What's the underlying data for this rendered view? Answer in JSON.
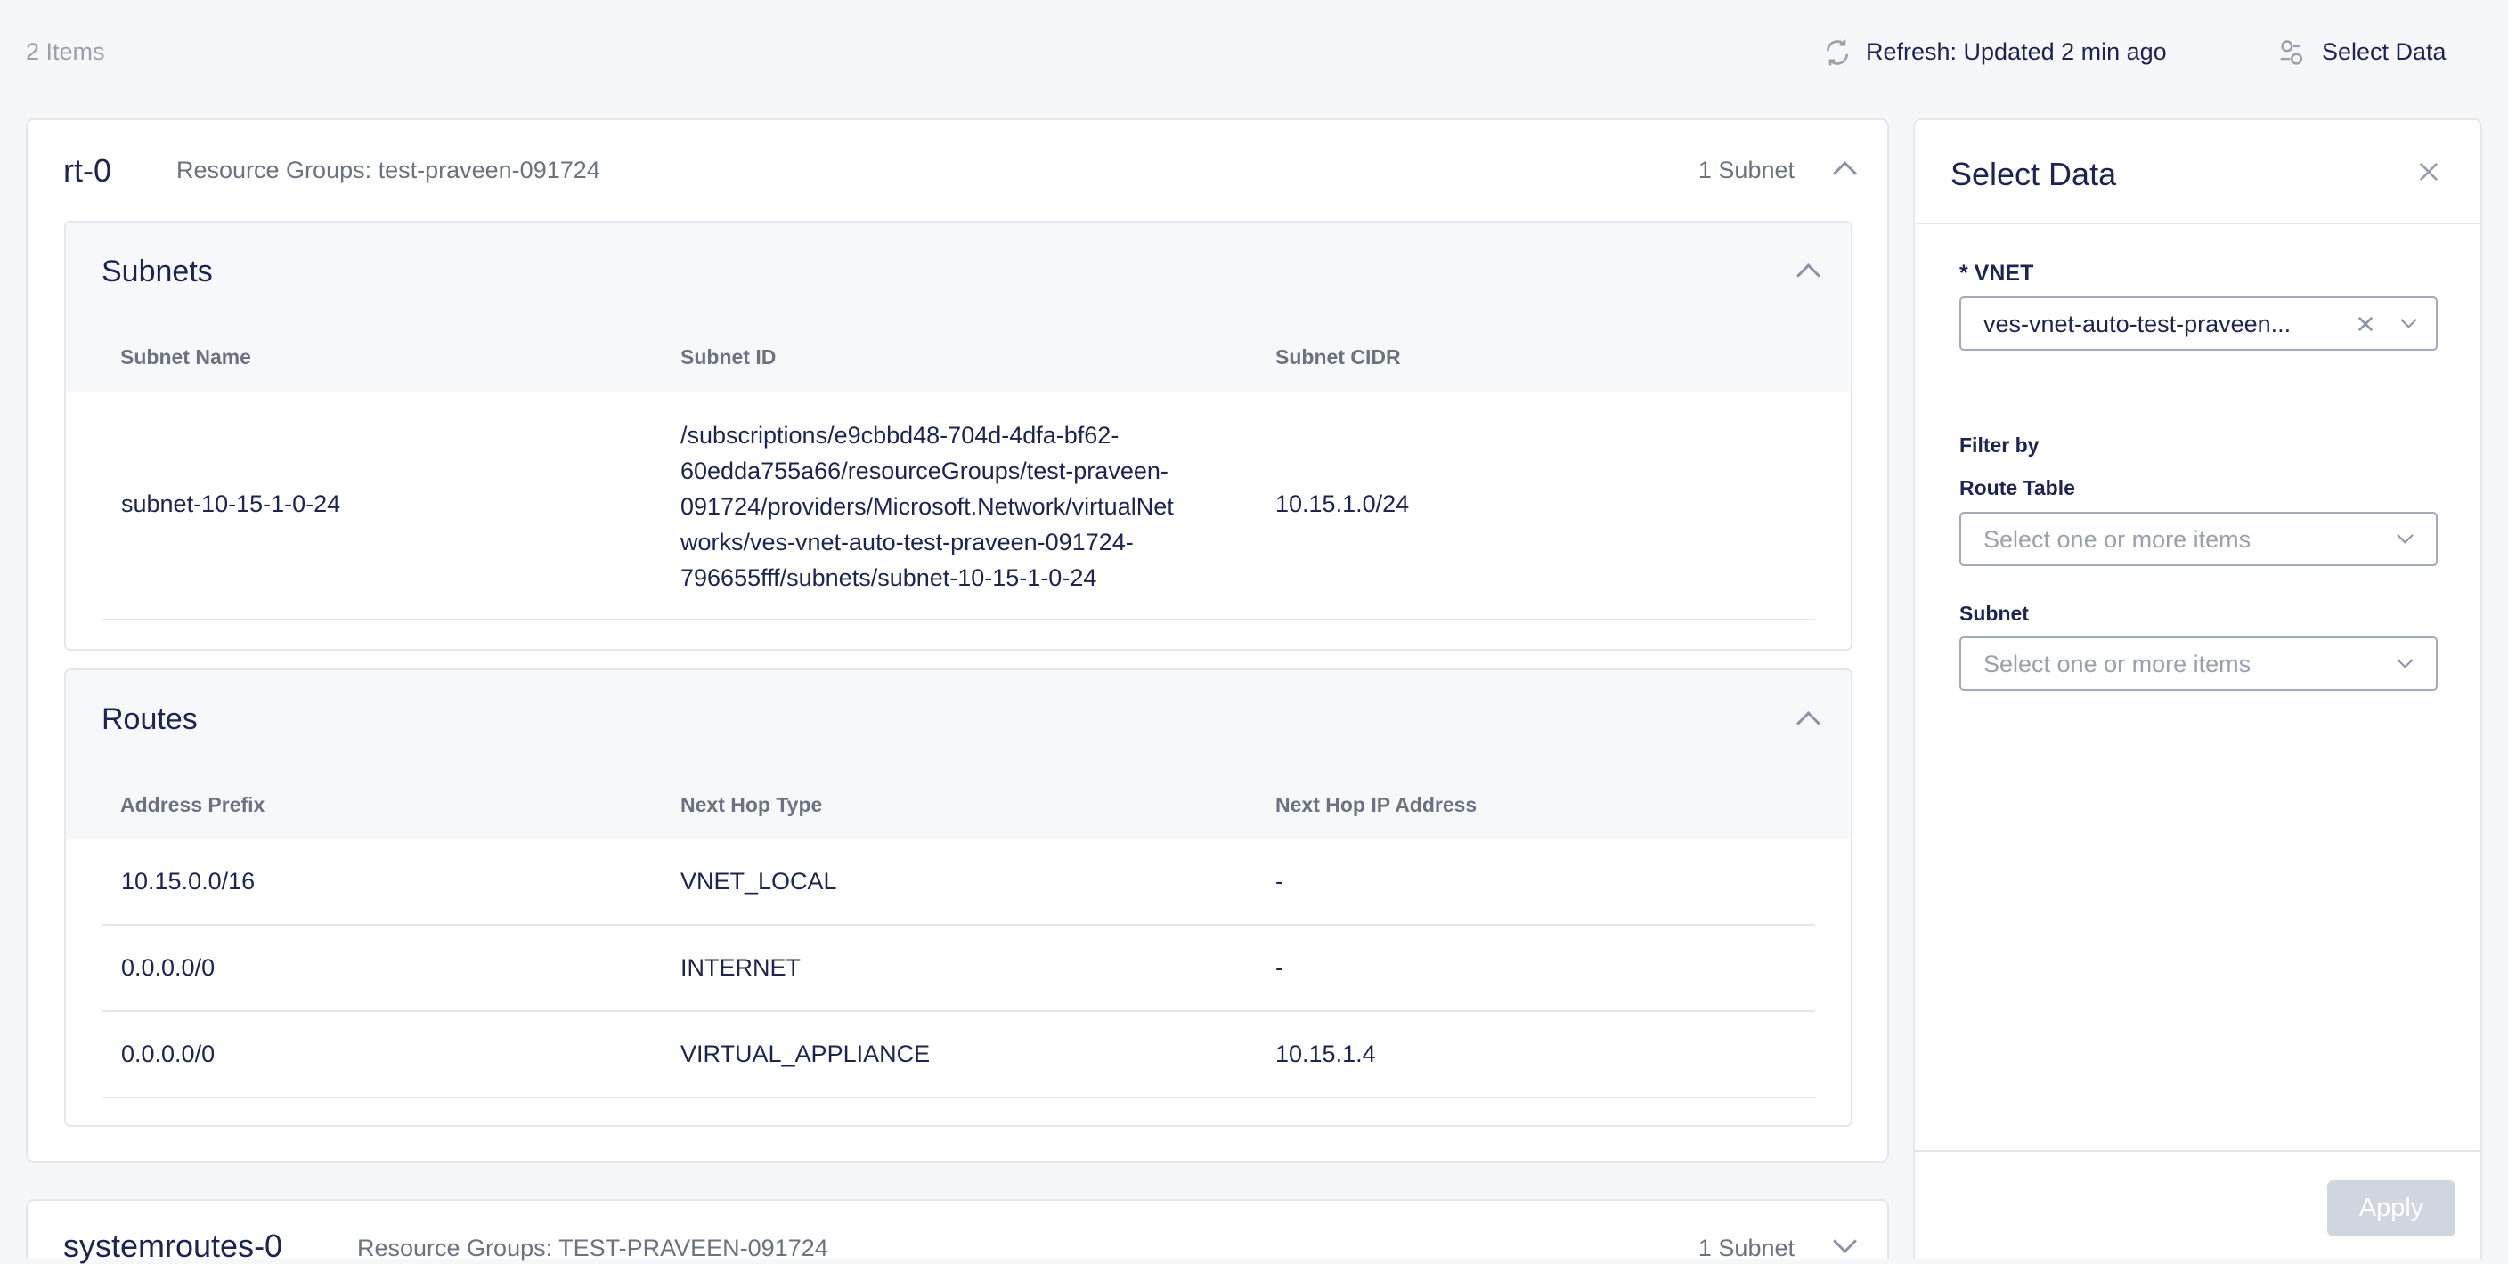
{
  "toolbar": {
    "item_count": "2 Items",
    "refresh_label": "Refresh: Updated 2 min ago",
    "select_data_label": "Select Data"
  },
  "cards": [
    {
      "name": "rt-0",
      "resource_group": "Resource Groups: test-praveen-091724",
      "subnet_count": "1 Subnet",
      "expanded": true,
      "subnets": {
        "title": "Subnets",
        "columns": [
          "Subnet Name",
          "Subnet ID",
          "Subnet CIDR"
        ],
        "rows": [
          {
            "name": "subnet-10-15-1-0-24",
            "id_lines": [
              "/subscriptions/e9cbbd48-704d-4dfa-bf62-",
              "60edda755a66/resourceGroups/test-praveen-",
              "091724/providers/Microsoft.Network/virtualNet",
              "works/ves-vnet-auto-test-praveen-091724-",
              "796655fff/subnets/subnet-10-15-1-0-24"
            ],
            "cidr": "10.15.1.0/24"
          }
        ]
      },
      "routes": {
        "title": "Routes",
        "columns": [
          "Address Prefix",
          "Next Hop Type",
          "Next Hop IP Address"
        ],
        "rows": [
          [
            "10.15.0.0/16",
            "VNET_LOCAL",
            "-"
          ],
          [
            "0.0.0.0/0",
            "INTERNET",
            "-"
          ],
          [
            "0.0.0.0/0",
            "VIRTUAL_APPLIANCE",
            "10.15.1.4"
          ]
        ]
      }
    },
    {
      "name": "systemroutes-0",
      "resource_group": "Resource Groups: TEST-PRAVEEN-091724",
      "subnet_count": "1 Subnet",
      "expanded": false
    }
  ],
  "panel": {
    "title": "Select Data",
    "vnet_label": "* VNET",
    "vnet_value": "ves-vnet-auto-test-praveen...",
    "filter_by": "Filter by",
    "route_table_label": "Route Table",
    "route_table_placeholder": "Select one or more items",
    "subnet_label": "Subnet",
    "subnet_placeholder": "Select one or more items",
    "apply_label": "Apply"
  },
  "colors": {
    "text": "#1c2452",
    "muted": "#6b7280",
    "apply_disabled": "#d1d5e0"
  }
}
